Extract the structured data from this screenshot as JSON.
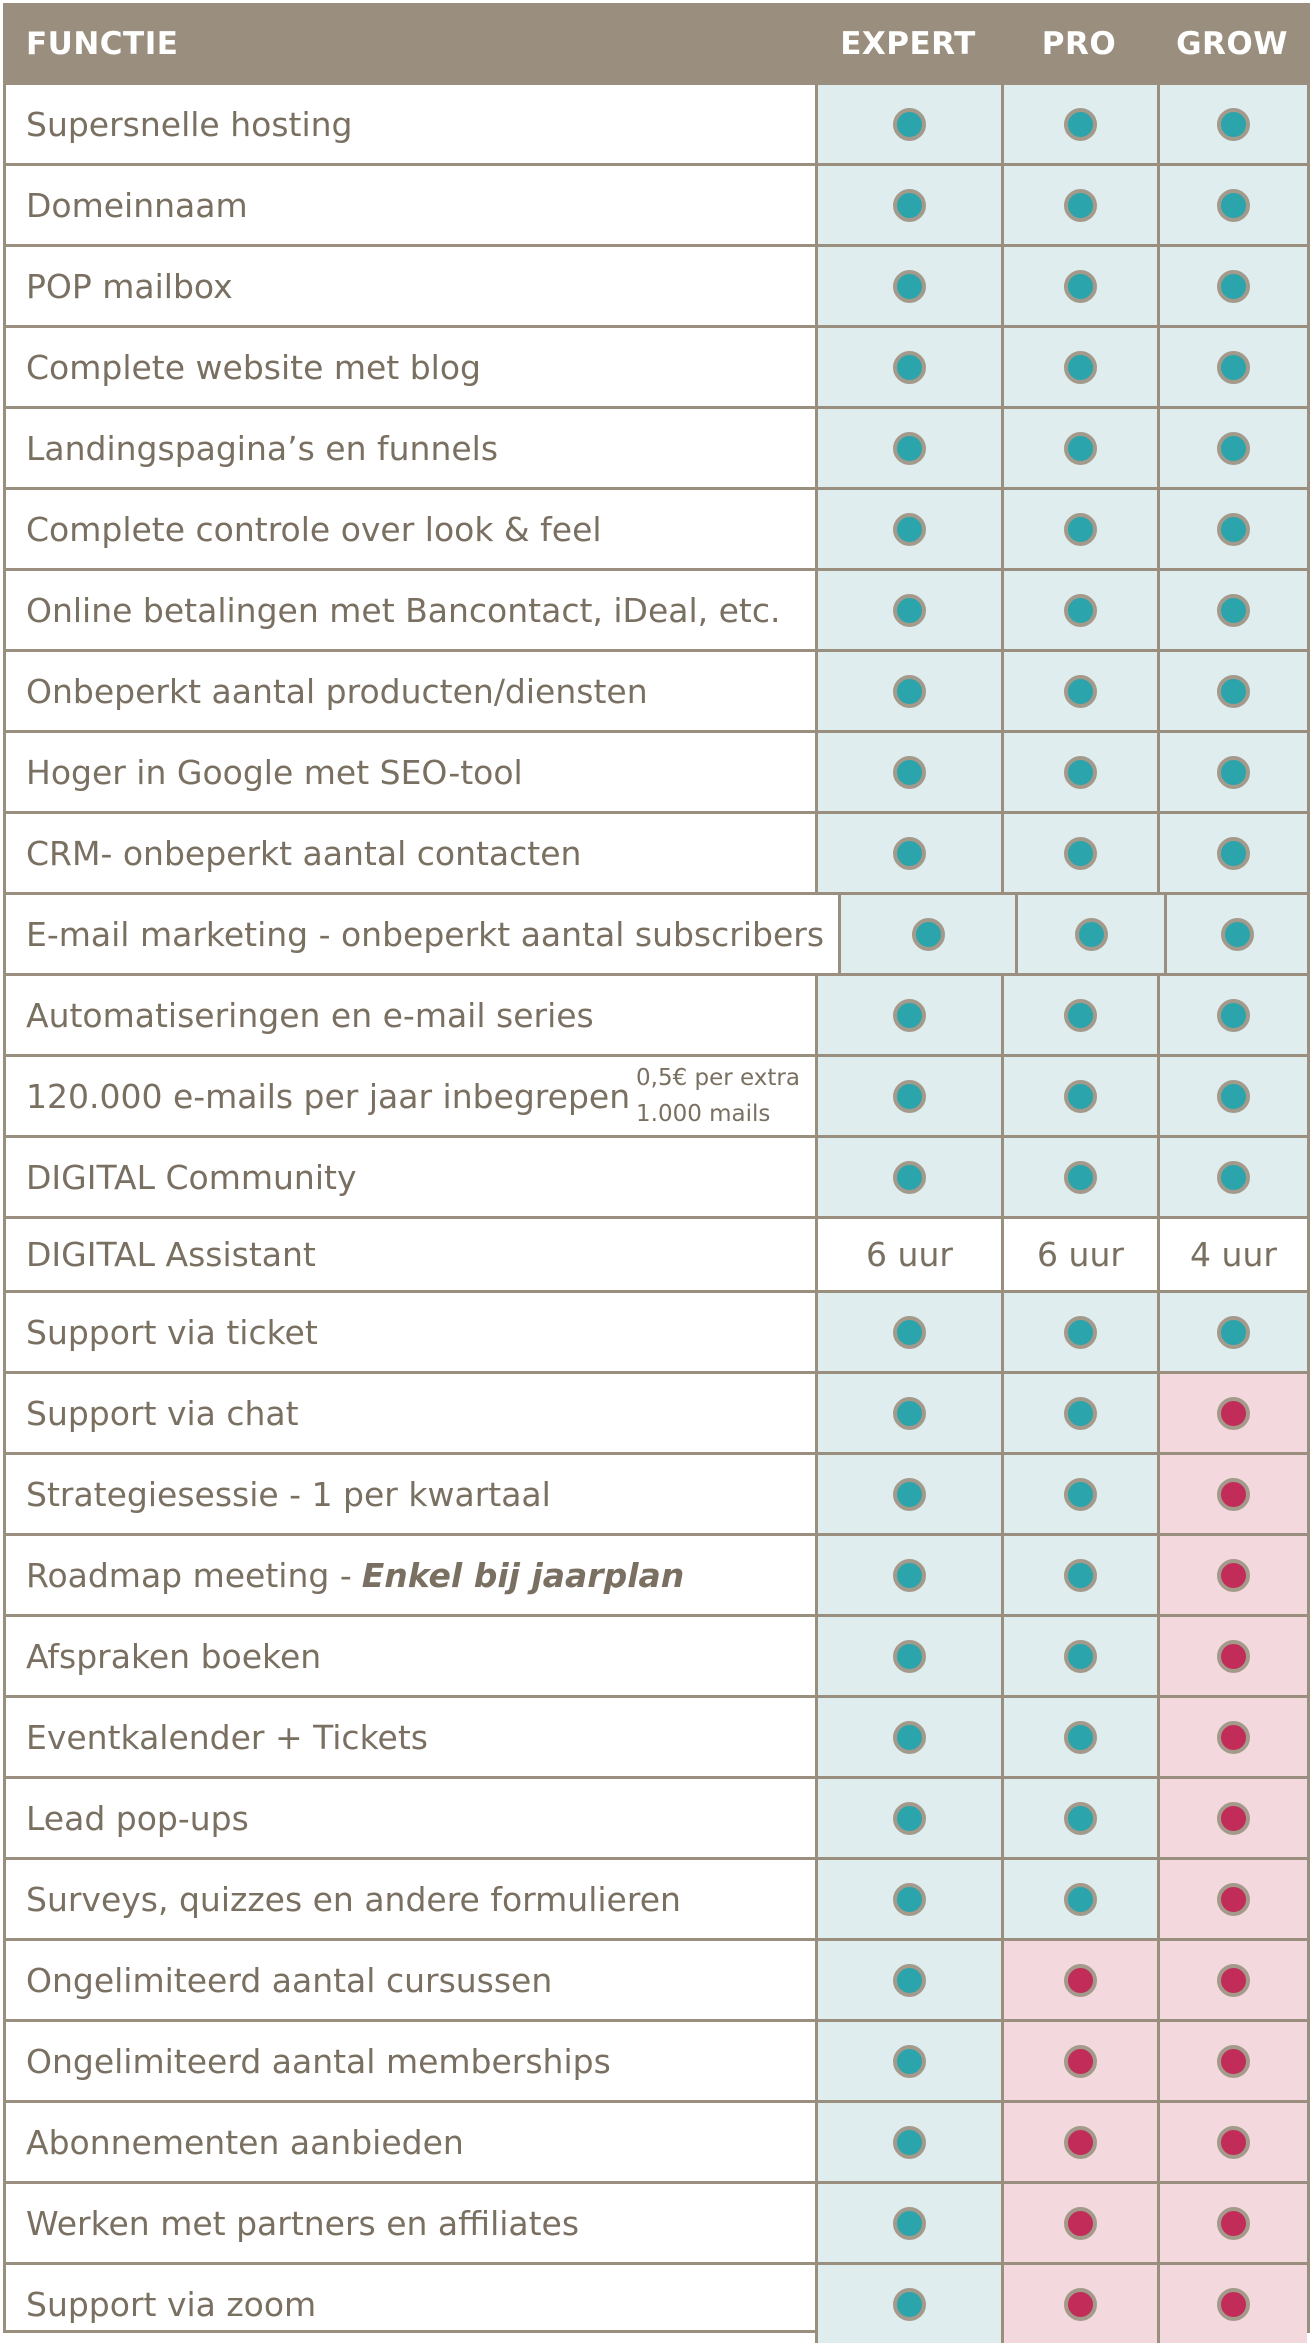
{
  "header": {
    "label": "FUNCTIE",
    "plans": [
      "EXPERT",
      "PRO",
      "GROW"
    ]
  },
  "colors": {
    "border": "#9a8f7e",
    "included": "#2ba5ab",
    "excluded": "#c12c58",
    "included_bg": "#e0edef",
    "excluded_bg": "#f3d9dd"
  },
  "rows": [
    {
      "label": "Supersnelle hosting",
      "values": [
        "yes",
        "yes",
        "yes"
      ]
    },
    {
      "label": "Domeinnaam",
      "values": [
        "yes",
        "yes",
        "yes"
      ]
    },
    {
      "label": "POP mailbox",
      "values": [
        "yes",
        "yes",
        "yes"
      ]
    },
    {
      "label": "Complete website met blog",
      "values": [
        "yes",
        "yes",
        "yes"
      ]
    },
    {
      "label": "Landingspagina’s en funnels",
      "values": [
        "yes",
        "yes",
        "yes"
      ]
    },
    {
      "label": "Complete controle over look & feel",
      "values": [
        "yes",
        "yes",
        "yes"
      ]
    },
    {
      "label": "Online betalingen met Bancontact, iDeal, etc.",
      "values": [
        "yes",
        "yes",
        "yes"
      ]
    },
    {
      "label": "Onbeperkt aantal producten/diensten",
      "values": [
        "yes",
        "yes",
        "yes"
      ]
    },
    {
      "label": "Hoger in Google met SEO-tool",
      "values": [
        "yes",
        "yes",
        "yes"
      ]
    },
    {
      "label": "CRM- onbeperkt aantal contacten",
      "values": [
        "yes",
        "yes",
        "yes"
      ]
    },
    {
      "label": "E-mail marketing - onbeperkt aantal subscribers",
      "values": [
        "yes",
        "yes",
        "yes"
      ]
    },
    {
      "label": "Automatiseringen en e-mail series",
      "values": [
        "yes",
        "yes",
        "yes"
      ]
    },
    {
      "label": "120.000 e-mails per jaar inbegrepen",
      "note": "0,5€ per extra 1.000 mails",
      "values": [
        "yes",
        "yes",
        "yes"
      ]
    },
    {
      "label": "DIGITAL Community",
      "values": [
        "yes",
        "yes",
        "yes"
      ]
    },
    {
      "label": "DIGITAL Assistant",
      "values": [
        "6 uur",
        "6 uur",
        "4 uur"
      ]
    },
    {
      "label": "Support via ticket",
      "values": [
        "yes",
        "yes",
        "yes"
      ]
    },
    {
      "label": "Support via chat",
      "values": [
        "yes",
        "yes",
        "no"
      ]
    },
    {
      "label": "Strategiesessie - 1 per kwartaal",
      "values": [
        "yes",
        "yes",
        "no"
      ]
    },
    {
      "label": "Roadmap meeting -",
      "emphasis": "Enkel bij jaarplan",
      "values": [
        "yes",
        "yes",
        "no"
      ]
    },
    {
      "label": "Afspraken boeken",
      "values": [
        "yes",
        "yes",
        "no"
      ]
    },
    {
      "label": "Eventkalender + Tickets",
      "values": [
        "yes",
        "yes",
        "no"
      ]
    },
    {
      "label": "Lead pop-ups",
      "values": [
        "yes",
        "yes",
        "no"
      ]
    },
    {
      "label": "Surveys, quizzes en andere formulieren",
      "values": [
        "yes",
        "yes",
        "no"
      ]
    },
    {
      "label": "Ongelimiteerd aantal cursussen",
      "values": [
        "yes",
        "no",
        "no"
      ]
    },
    {
      "label": "Ongelimiteerd aantal memberships",
      "values": [
        "yes",
        "no",
        "no"
      ]
    },
    {
      "label": "Abonnementen aanbieden",
      "values": [
        "yes",
        "no",
        "no"
      ]
    },
    {
      "label": "Werken met partners en affiliates",
      "values": [
        "yes",
        "no",
        "no"
      ]
    },
    {
      "label": "Support via zoom",
      "values": [
        "yes",
        "no",
        "no"
      ]
    }
  ]
}
